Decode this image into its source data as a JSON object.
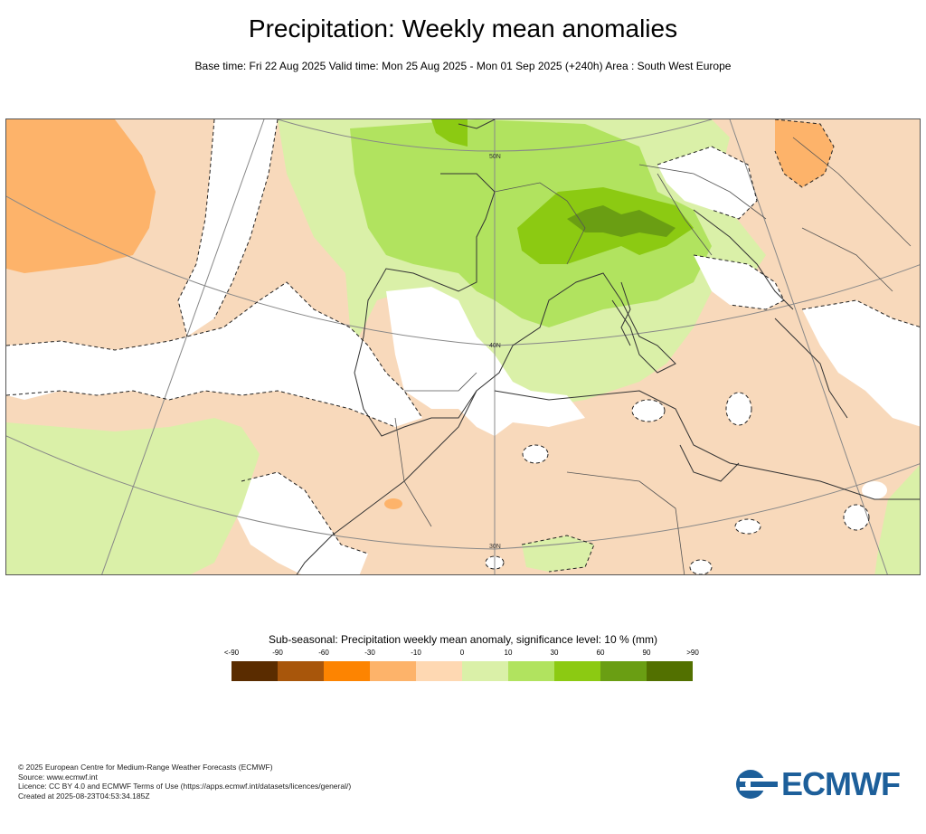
{
  "header": {
    "title": "Precipitation: Weekly mean anomalies",
    "subtitle": "Base time: Fri 22 Aug 2025 Valid time: Mon 25 Aug 2025 - Mon 01 Sep 2025 (+240h) Area : South West Europe"
  },
  "map": {
    "lat_labels": [
      "50N",
      "40N",
      "30N"
    ],
    "colors": {
      "land_bg": "#f8d9bb",
      "neg_30": "#fdb36a",
      "pos_0": "#daf0a8",
      "pos_10": "#b1e35f",
      "pos_30": "#8cca12",
      "pos_60": "#6a9e13",
      "insignificant": "#ffffff"
    }
  },
  "legend": {
    "title": "Sub-seasonal: Precipitation weekly mean anomaly, significance level: 10 % (mm)",
    "ticks": [
      "<-90",
      "-90",
      "-60",
      "-30",
      "-10",
      "0",
      "10",
      "30",
      "60",
      "90",
      ">90"
    ],
    "colors": [
      "#5a2c00",
      "#a8560b",
      "#fd8401",
      "#fdb36a",
      "#fed8b2",
      "#daf0a8",
      "#b1e35f",
      "#8cca12",
      "#6a9e13",
      "#527000"
    ]
  },
  "footer": {
    "lines": [
      "© 2025 European Centre for Medium-Range Weather Forecasts (ECMWF)",
      "Source: www.ecmwf.int",
      "Licence: CC BY 4.0 and ECMWF Terms of Use (https://apps.ecmwf.int/datasets/licences/general/)",
      "Created at 2025-08-23T04:53:34.185Z"
    ]
  },
  "logo": {
    "text": "ECMWF"
  }
}
